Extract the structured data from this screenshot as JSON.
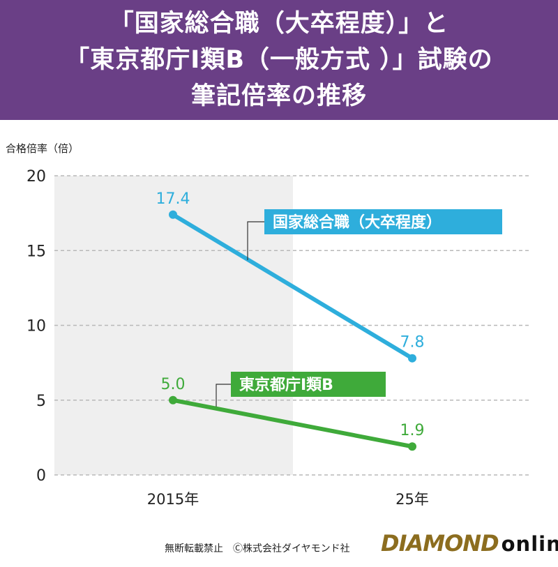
{
  "header": {
    "title_lines": [
      "「国家総合職（大卒程度）」と",
      "「東京都庁Ⅰ類B（一般方式 ）」試験の",
      "筆記倍率の推移"
    ],
    "background": "#6a3f86"
  },
  "chart_data": {
    "type": "line",
    "ylabel": "合格倍率（倍）",
    "categories": [
      "2015年",
      "25年"
    ],
    "ylim": [
      0,
      20
    ],
    "yticks": [
      "0",
      "5",
      "10",
      "15",
      "20"
    ],
    "grid": "horizontal dashed",
    "highlight_band": "2015年",
    "series": [
      {
        "name": "国家総合職（大卒程度）",
        "values": [
          17.4,
          7.8
        ],
        "labels": [
          "17.4",
          "7.8"
        ],
        "color": "#2eaedc"
      },
      {
        "name": "東京都庁Ⅰ類B",
        "values": [
          5.0,
          1.9
        ],
        "labels": [
          "5.0",
          "1.9"
        ],
        "color": "#3faa3a"
      }
    ]
  },
  "footer": {
    "notice": "無断転載禁止",
    "copyright": "Ⓒ株式会社ダイヤモンド社",
    "logo_main": "DIAMOND",
    "logo_sub": "online",
    "logo_color": "#8c6d1f"
  }
}
